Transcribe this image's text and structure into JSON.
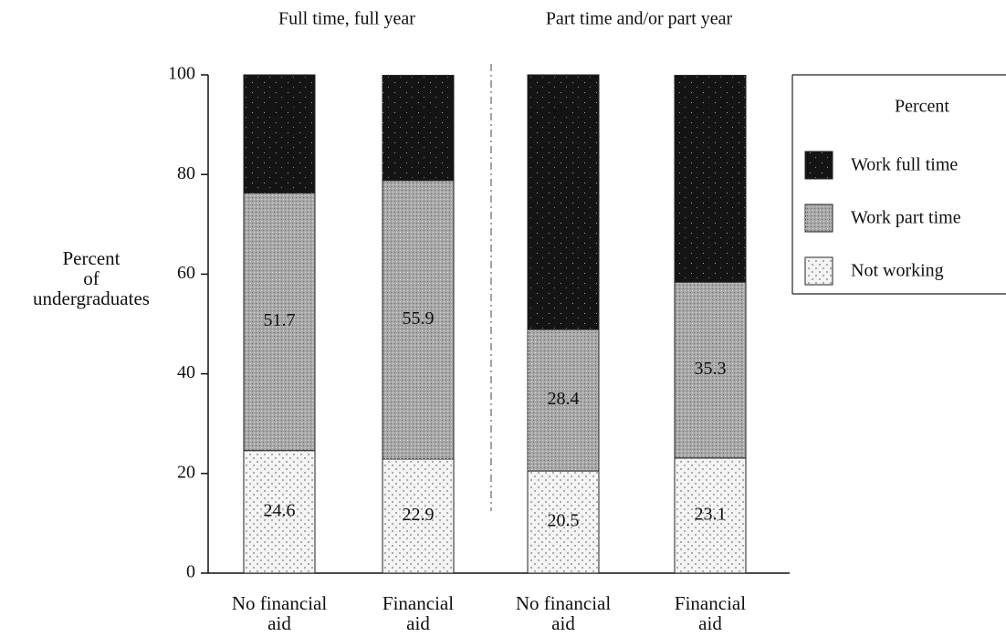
{
  "chart_data": {
    "type": "stacked-bar",
    "groups": [
      "Full time, full year",
      "Part time and/or part year"
    ],
    "y_label": "Percent\nof\nundergraduates",
    "categories": [
      "No financial\naid",
      "Financial\naid",
      "No financial\naid",
      "Financial\naid"
    ],
    "series": [
      {
        "name": "Not working",
        "color": "#f4f4f4",
        "values": [
          24.6,
          22.9,
          20.5,
          23.1
        ]
      },
      {
        "name": "Work part time",
        "color": "#a8a8a8",
        "values": [
          51.7,
          55.9,
          28.4,
          35.3
        ]
      },
      {
        "name": "Work full time",
        "color": "#141414",
        "values": [
          23.7,
          21.1,
          51.1,
          41.5
        ]
      }
    ],
    "legend_title": "Percent",
    "legend": "right",
    "ylim": [
      0,
      100
    ],
    "yticks": [
      0,
      20,
      40,
      60,
      80,
      100
    ]
  }
}
